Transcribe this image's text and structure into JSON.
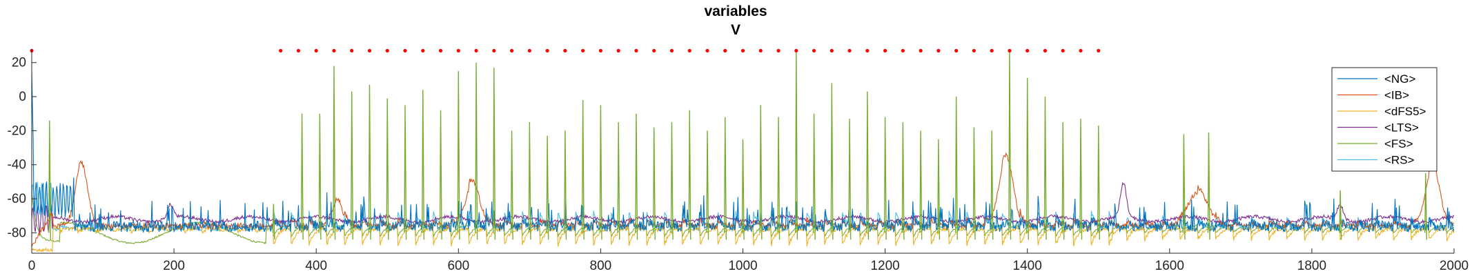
{
  "chart_data": {
    "type": "line",
    "title": "variables",
    "subtitle": "V",
    "xlabel": "",
    "ylabel": "",
    "xlim": [
      0,
      2000
    ],
    "ylim": [
      -92,
      28
    ],
    "xticks": [
      "0",
      "200",
      "400",
      "600",
      "800",
      "1000",
      "1200",
      "1400",
      "1600",
      "1800",
      "2000"
    ],
    "yticks": [
      "-80",
      "-60",
      "-40",
      "-20",
      "0",
      "20"
    ],
    "grid": false,
    "legend_position": "top-right",
    "series": [
      {
        "name": "<NG>",
        "color": "#0072BD",
        "baseline": -75,
        "amplitude": 4,
        "spike_height": 12,
        "noise": 6
      },
      {
        "name": "<IB>",
        "color": "#D95319",
        "baseline": -75,
        "amplitude": 8,
        "burst_peak": -58,
        "noise": 3
      },
      {
        "name": "<dFS5>",
        "color": "#EDB120",
        "baseline": -78,
        "amplitude": 10,
        "noise": 2
      },
      {
        "name": "<LTS>",
        "color": "#7E2F8E",
        "baseline": -72,
        "amplitude": 5,
        "noise": 2
      },
      {
        "name": "<FS>",
        "color": "#77AC30",
        "baseline": -82,
        "amplitude": 8,
        "spike_peak": 10,
        "noise": 1
      },
      {
        "name": "<RS>",
        "color": "#4DBEEE",
        "baseline": -75,
        "amplitude": 10,
        "spike_peak": -45,
        "noise": 2
      }
    ],
    "events": {
      "color": "#FF0000",
      "y": 27,
      "x": [
        0,
        350,
        375,
        400,
        425,
        450,
        475,
        500,
        525,
        550,
        575,
        600,
        625,
        650,
        675,
        700,
        725,
        750,
        775,
        800,
        825,
        850,
        875,
        900,
        925,
        950,
        975,
        1000,
        1025,
        1050,
        1075,
        1100,
        1125,
        1150,
        1175,
        1200,
        1225,
        1250,
        1275,
        1300,
        1325,
        1350,
        1375,
        1400,
        1425,
        1450,
        1475,
        1500
      ]
    },
    "fs_spikes": {
      "x": [
        25,
        340,
        380,
        405,
        425,
        450,
        475,
        500,
        525,
        550,
        575,
        600,
        625,
        650,
        675,
        700,
        725,
        750,
        775,
        800,
        825,
        850,
        875,
        900,
        925,
        950,
        975,
        1000,
        1025,
        1050,
        1075,
        1100,
        1125,
        1150,
        1175,
        1200,
        1225,
        1250,
        1275,
        1300,
        1325,
        1350,
        1375,
        1400,
        1425,
        1450,
        1475,
        1500,
        1620,
        1655,
        1840,
        1960
      ],
      "peak": [
        -14,
        -63,
        -10,
        -10,
        18,
        3,
        7,
        -1,
        -5,
        4,
        -8,
        15,
        20,
        17,
        -20,
        -15,
        -23,
        -20,
        -2,
        -5,
        -15,
        -10,
        -18,
        -15,
        -8,
        -20,
        -12,
        -25,
        -5,
        -12,
        27,
        -10,
        8,
        -13,
        3,
        -12,
        -15,
        -20,
        -25,
        0,
        -18,
        -20,
        27,
        11,
        0,
        -15,
        -13,
        -17,
        -22,
        -21,
        -55,
        -45
      ]
    }
  }
}
